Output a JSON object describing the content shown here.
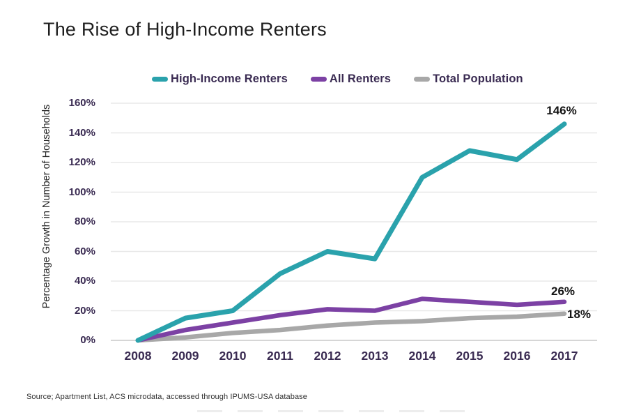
{
  "title": "The Rise of High-Income Renters",
  "source": "Source; Apartment List, ACS microdata, accessed through IPUMS-USA database",
  "colors": {
    "teal": "#2AA2AC",
    "purple": "#7C41A4",
    "gray": "#A8A8A8",
    "axis_text": "#3A2B52",
    "title_text": "#1E1E1E",
    "data_label_text": "#141414",
    "gridline": "#E8E8E8",
    "baseline": "#D6D6D6"
  },
  "chart_data": {
    "type": "line",
    "title": "The Rise of High-Income Renters",
    "xlabel": "",
    "ylabel": "Percentage Growth in Number of Households",
    "categories": [
      "2008",
      "2009",
      "2010",
      "2011",
      "2012",
      "2013",
      "2014",
      "2015",
      "2016",
      "2017"
    ],
    "y_ticks": [
      "0%",
      "20%",
      "40%",
      "60%",
      "80%",
      "100%",
      "120%",
      "140%",
      "160%"
    ],
    "ylim": [
      0,
      160
    ],
    "grid": "horizontal",
    "legend_position": "top",
    "series": [
      {
        "name": "High-Income Renters",
        "color": "#2AA2AC",
        "values": [
          0,
          15,
          20,
          45,
          60,
          55,
          110,
          128,
          122,
          146
        ],
        "end_label": "146%"
      },
      {
        "name": "All Renters",
        "color": "#7C41A4",
        "values": [
          0,
          7,
          12,
          17,
          21,
          20,
          28,
          26,
          24,
          26
        ],
        "end_label": "26%"
      },
      {
        "name": "Total Population",
        "color": "#A8A8A8",
        "values": [
          0,
          2,
          5,
          7,
          10,
          12,
          13,
          15,
          16,
          18
        ],
        "end_label": "18%"
      }
    ]
  }
}
